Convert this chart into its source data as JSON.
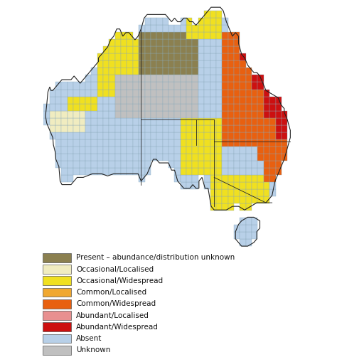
{
  "legend_items": [
    {
      "label": "Present – abundance/distribution unknown",
      "color": "#8B8050"
    },
    {
      "label": "Occasional/Localised",
      "color": "#F0ECC0"
    },
    {
      "label": "Occasional/Widespread",
      "color": "#F0E020"
    },
    {
      "label": "Common/Localised",
      "color": "#F0A830"
    },
    {
      "label": "Common/Widespread",
      "color": "#E86010"
    },
    {
      "label": "Abundant/Localised",
      "color": "#E89090"
    },
    {
      "label": "Abundant/Widespread",
      "color": "#CC1010"
    },
    {
      "label": "Absent",
      "color": "#B8D0E8"
    },
    {
      "label": "Unknown",
      "color": "#C0C0C0"
    }
  ],
  "background_color": "#FFFFFF",
  "grid_color": "#8AAABB",
  "figsize": [
    4.74,
    5.09
  ],
  "dpi": 100,
  "lon_min": 113.0,
  "lon_max": 154.0,
  "lat_min": -44.5,
  "lat_max": -10.0
}
